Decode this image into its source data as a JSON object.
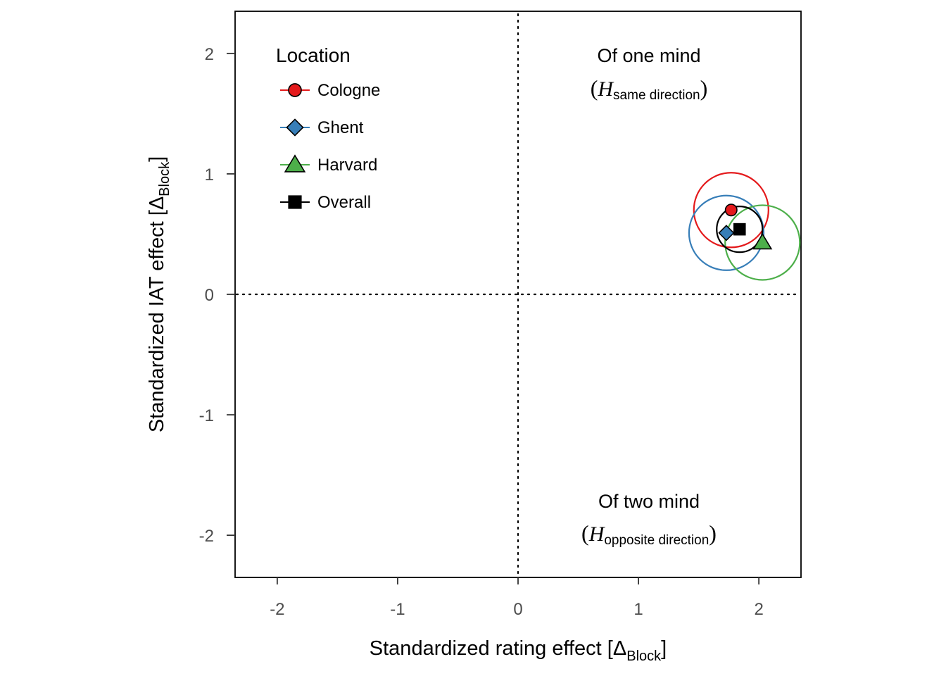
{
  "chart_data": {
    "type": "scatter",
    "xlabel": "Standardized rating effect [Δ",
    "xlabel_sub": "Block",
    "xlabel_close": "]",
    "ylabel": "Standardized IAT effect [Δ",
    "ylabel_sub": "Block",
    "ylabel_close": "]",
    "xlim": [
      -2.35,
      2.35
    ],
    "ylim": [
      -2.35,
      2.35
    ],
    "xticks": [
      -2,
      -1,
      0,
      1,
      2
    ],
    "yticks": [
      -2,
      -1,
      0,
      1,
      2
    ],
    "xtick_labels": [
      "-2",
      "-1",
      "0",
      "1",
      "2"
    ],
    "ytick_labels": [
      "-2",
      "-1",
      "0",
      "1",
      "2"
    ],
    "reference_lines": {
      "x": 0,
      "y": 0,
      "style": "dotted"
    },
    "grid": false,
    "legend": {
      "title": "Location",
      "placement": "top-left"
    },
    "series": [
      {
        "name": "Cologne",
        "shape": "circle",
        "color": "#e41a1c",
        "x": 1.77,
        "y": 0.7,
        "circle_radius": 0.31
      },
      {
        "name": "Ghent",
        "shape": "diamond",
        "color": "#377eb8",
        "x": 1.73,
        "y": 0.51,
        "circle_radius": 0.31
      },
      {
        "name": "Harvard",
        "shape": "triangle",
        "color": "#4daf4a",
        "x": 2.03,
        "y": 0.43,
        "circle_radius": 0.31
      },
      {
        "name": "Overall",
        "shape": "square",
        "color": "#000000",
        "x": 1.84,
        "y": 0.54,
        "circle_radius": 0.19
      }
    ],
    "annotations": [
      {
        "id": "one-mind",
        "title": "Of one mind",
        "open": "(",
        "symbol": "H",
        "sub": "same direction",
        "close": ")"
      },
      {
        "id": "two-mind",
        "title": "Of two mind",
        "open": "(",
        "symbol": "H",
        "sub": "opposite direction",
        "close": ")"
      }
    ]
  }
}
